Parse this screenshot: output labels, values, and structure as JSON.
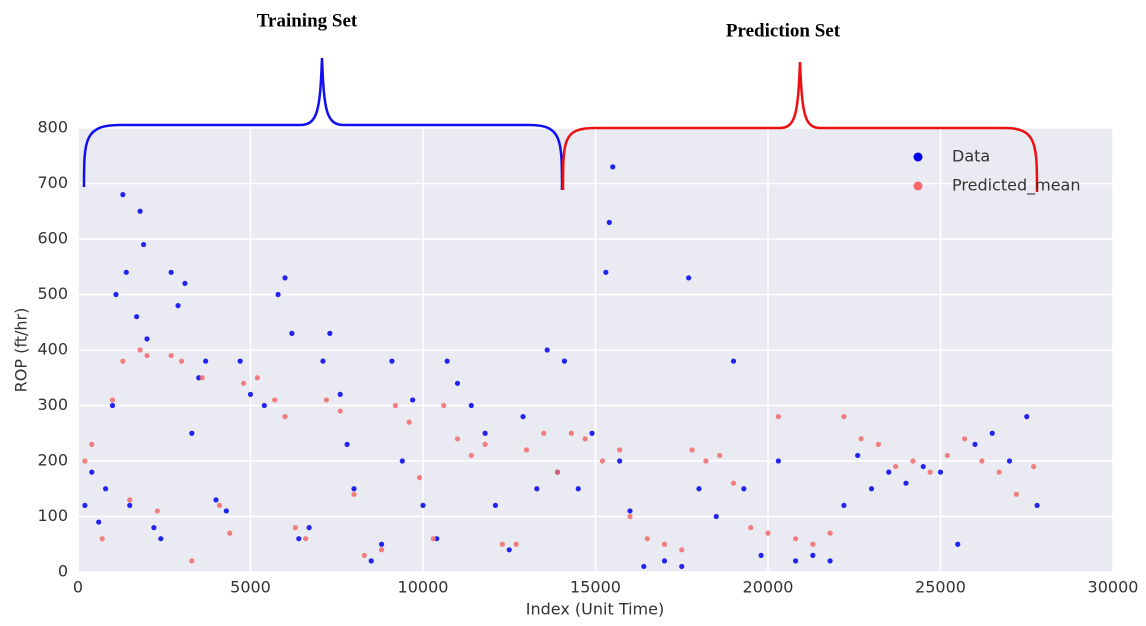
{
  "chart_data": {
    "type": "scatter",
    "annotations": [
      "Training Set",
      "Prediction Set"
    ],
    "x_label": "Index (Unit Time)",
    "y_label": "ROP (ft/hr)",
    "xlim": [
      0,
      30000
    ],
    "ylim": [
      0,
      800
    ],
    "xticks": [
      0,
      5000,
      10000,
      15000,
      20000,
      25000,
      30000
    ],
    "yticks": [
      0,
      100,
      200,
      300,
      400,
      500,
      600,
      700,
      800
    ],
    "grid": true,
    "legend": "upper right",
    "series": [
      {
        "name": "Data",
        "color": "#0000ee",
        "x": [
          200,
          400,
          600,
          800,
          1000,
          1100,
          1300,
          1400,
          1500,
          1700,
          1800,
          1900,
          2000,
          2200,
          2400,
          2700,
          2900,
          3100,
          3300,
          3500,
          3700,
          4000,
          4300,
          4700,
          5000,
          5400,
          5800,
          6000,
          6200,
          6400,
          6700,
          7100,
          7300,
          7600,
          7800,
          8000,
          8500,
          8800,
          9100,
          9400,
          9700,
          10000,
          10400,
          10700,
          11000,
          11400,
          11800,
          12100,
          12500,
          12900,
          13300,
          13600,
          13900,
          14100,
          14500,
          14900,
          15300,
          15400,
          15500,
          15700,
          16000,
          16400,
          17000,
          17500,
          17700,
          18000,
          18500,
          19000,
          19300,
          19800,
          20300,
          20800,
          21300,
          21800,
          22200,
          22600,
          23000,
          23500,
          24000,
          24500,
          25000,
          25500,
          26000,
          26500,
          27000,
          27500,
          27800
        ],
        "values": [
          120,
          180,
          90,
          150,
          300,
          500,
          680,
          540,
          120,
          460,
          650,
          590,
          420,
          80,
          60,
          540,
          480,
          520,
          250,
          350,
          380,
          130,
          110,
          380,
          320,
          300,
          500,
          530,
          430,
          60,
          80,
          380,
          430,
          320,
          230,
          150,
          20,
          50,
          380,
          200,
          310,
          120,
          60,
          380,
          340,
          300,
          250,
          120,
          40,
          280,
          150,
          400,
          180,
          380,
          150,
          250,
          540,
          630,
          730,
          200,
          110,
          10,
          20,
          10,
          530,
          150,
          100,
          380,
          150,
          30,
          200,
          20,
          30,
          20,
          120,
          210,
          150,
          180,
          160,
          190,
          180,
          50,
          230,
          250,
          200,
          280,
          120
        ]
      },
      {
        "name": "Predicted_mean",
        "color": "#f26a6a",
        "x": [
          200,
          400,
          700,
          1000,
          1300,
          1500,
          1800,
          2000,
          2300,
          2700,
          3000,
          3300,
          3600,
          4100,
          4400,
          4800,
          5200,
          5700,
          6000,
          6300,
          6600,
          7200,
          7600,
          8000,
          8300,
          8800,
          9200,
          9600,
          9900,
          10300,
          10600,
          11000,
          11400,
          11800,
          12300,
          12700,
          13000,
          13500,
          13900,
          14300,
          14700,
          15200,
          15700,
          16000,
          16500,
          17000,
          17500,
          17800,
          18200,
          18600,
          19000,
          19500,
          20000,
          20300,
          20800,
          21300,
          21800,
          22200,
          22700,
          23200,
          23700,
          24200,
          24700,
          25200,
          25700,
          26200,
          26700,
          27200,
          27700
        ],
        "values": [
          200,
          230,
          60,
          310,
          380,
          130,
          400,
          390,
          110,
          390,
          380,
          20,
          350,
          120,
          70,
          340,
          350,
          310,
          280,
          80,
          60,
          310,
          290,
          140,
          30,
          40,
          300,
          270,
          170,
          60,
          300,
          240,
          210,
          230,
          50,
          50,
          220,
          250,
          180,
          250,
          240,
          200,
          220,
          100,
          60,
          50,
          40,
          220,
          200,
          210,
          160,
          80,
          70,
          280,
          60,
          50,
          70,
          280,
          240,
          230,
          190,
          200,
          180,
          210,
          240,
          200,
          180,
          140,
          190
        ]
      }
    ]
  }
}
